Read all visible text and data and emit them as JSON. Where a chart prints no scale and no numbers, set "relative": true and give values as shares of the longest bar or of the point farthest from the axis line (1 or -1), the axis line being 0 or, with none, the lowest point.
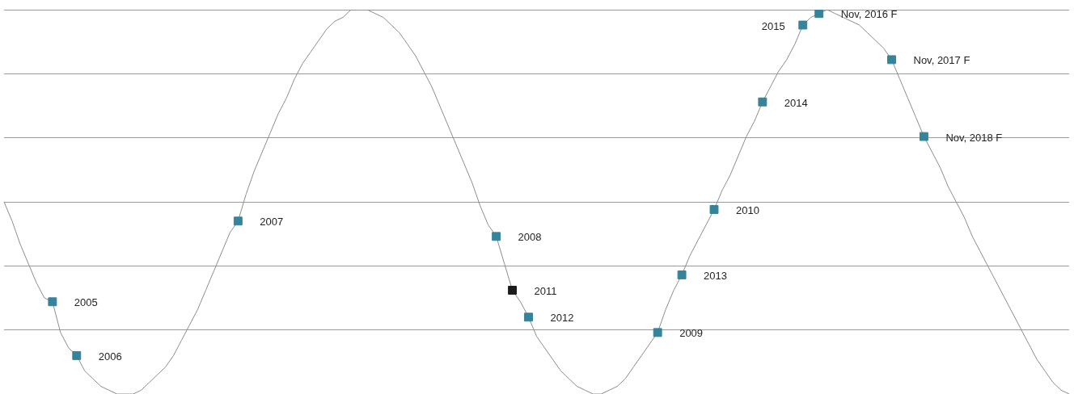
{
  "chart_data": {
    "type": "line",
    "relative": true,
    "grid": "y",
    "legend": false,
    "categories": [
      null,
      null,
      null,
      null,
      null,
      null,
      null,
      null,
      null,
      null,
      null,
      null,
      null,
      null,
      null,
      null,
      null,
      null,
      null,
      null,
      null,
      null,
      null,
      null,
      null,
      null,
      null,
      null,
      null,
      null,
      null,
      null,
      null,
      null,
      null,
      null,
      null,
      null,
      null,
      null,
      null,
      null,
      null,
      null,
      null,
      null,
      null,
      null,
      null,
      null,
      null,
      null,
      null,
      null,
      null,
      null,
      null,
      null,
      null,
      null,
      null,
      null,
      null,
      null,
      null,
      null,
      null,
      null,
      null,
      null,
      null,
      null,
      null,
      null,
      null,
      null,
      null,
      null,
      null,
      null,
      null,
      null,
      null,
      null,
      null,
      null,
      null,
      null,
      null,
      null,
      null,
      null,
      null,
      null,
      null,
      null,
      null,
      null,
      null,
      null,
      null,
      null,
      null,
      null,
      null,
      null,
      null,
      null,
      null,
      null,
      null,
      null,
      null,
      null,
      null,
      null,
      null,
      null,
      null,
      null,
      null,
      null,
      null,
      null,
      null,
      null,
      null,
      null,
      null,
      null,
      null,
      null,
      null
    ],
    "series": [
      {
        "color": "#8c8c8c",
        "values": [
          0.5,
          0.45,
          0.39,
          0.34,
          0.29,
          0.25,
          0.24,
          0.16,
          0.12,
          0.1,
          0.06,
          0.04,
          0.02,
          0.01,
          0,
          0,
          0,
          0.01,
          0.03,
          0.05,
          0.07,
          0.1,
          0.14,
          0.18,
          0.22,
          0.27,
          0.32,
          0.37,
          0.42,
          0.45,
          0.52,
          0.58,
          0.63,
          0.68,
          0.73,
          0.77,
          0.82,
          0.86,
          0.89,
          0.92,
          0.95,
          0.97,
          0.98,
          1,
          1,
          1,
          0.99,
          0.98,
          0.96,
          0.94,
          0.91,
          0.88,
          0.84,
          0.8,
          0.75,
          0.7,
          0.65,
          0.6,
          0.55,
          0.49,
          0.44,
          0.41,
          0.34,
          0.27,
          0.24,
          0.2,
          0.15,
          0.12,
          0.09,
          0.06,
          0.04,
          0.02,
          0.01,
          0,
          0,
          0.01,
          0.02,
          0.04,
          0.07,
          0.1,
          0.13,
          0.16,
          0.22,
          0.27,
          0.31,
          0.36,
          0.4,
          0.44,
          0.48,
          0.53,
          0.57,
          0.62,
          0.67,
          0.71,
          0.76,
          0.8,
          0.84,
          0.87,
          0.91,
          0.96,
          0.98,
          0.99,
          1,
          0.99,
          0.98,
          0.97,
          0.96,
          0.94,
          0.92,
          0.9,
          0.87,
          0.82,
          0.77,
          0.72,
          0.67,
          0.63,
          0.59,
          0.54,
          0.5,
          0.46,
          0.41,
          0.37,
          0.33,
          0.29,
          0.25,
          0.21,
          0.17,
          0.13,
          0.09,
          0.06,
          0.03,
          0.01,
          0
        ],
        "colors": [
          null,
          null,
          null,
          null,
          null,
          null,
          "#35849a",
          null,
          null,
          "#35849a",
          null,
          null,
          null,
          null,
          null,
          null,
          null,
          null,
          null,
          null,
          null,
          null,
          null,
          null,
          null,
          null,
          null,
          null,
          null,
          "#35849a",
          null,
          null,
          null,
          null,
          null,
          null,
          null,
          null,
          null,
          null,
          null,
          null,
          null,
          null,
          null,
          null,
          null,
          null,
          null,
          null,
          null,
          null,
          null,
          null,
          null,
          null,
          null,
          null,
          null,
          null,
          null,
          "#35849a",
          null,
          "#1c1c1c",
          null,
          "#35849a",
          null,
          null,
          null,
          null,
          null,
          null,
          null,
          null,
          null,
          null,
          null,
          null,
          null,
          null,
          null,
          "#35849a",
          null,
          null,
          "#35849a",
          null,
          null,
          null,
          "#35849a",
          null,
          null,
          null,
          null,
          null,
          "#35849a",
          null,
          null,
          null,
          null,
          "#35849a",
          null,
          "#35849a",
          null,
          null,
          null,
          null,
          null,
          null,
          null,
          null,
          "#35849a",
          null,
          null,
          null,
          "#35849a",
          null,
          null,
          null,
          null,
          null,
          null,
          null,
          null,
          null,
          null,
          null,
          null,
          null,
          null,
          null,
          null,
          null,
          null
        ]
      }
    ],
    "annotations": [
      "2005",
      "2006",
      "2007",
      "2008",
      "2011",
      "2012",
      "2009",
      "2013",
      "2010",
      "2014",
      "2015",
      "Nov, 2016 F",
      "Nov, 2017 F",
      "Nov, 2018 F"
    ]
  }
}
